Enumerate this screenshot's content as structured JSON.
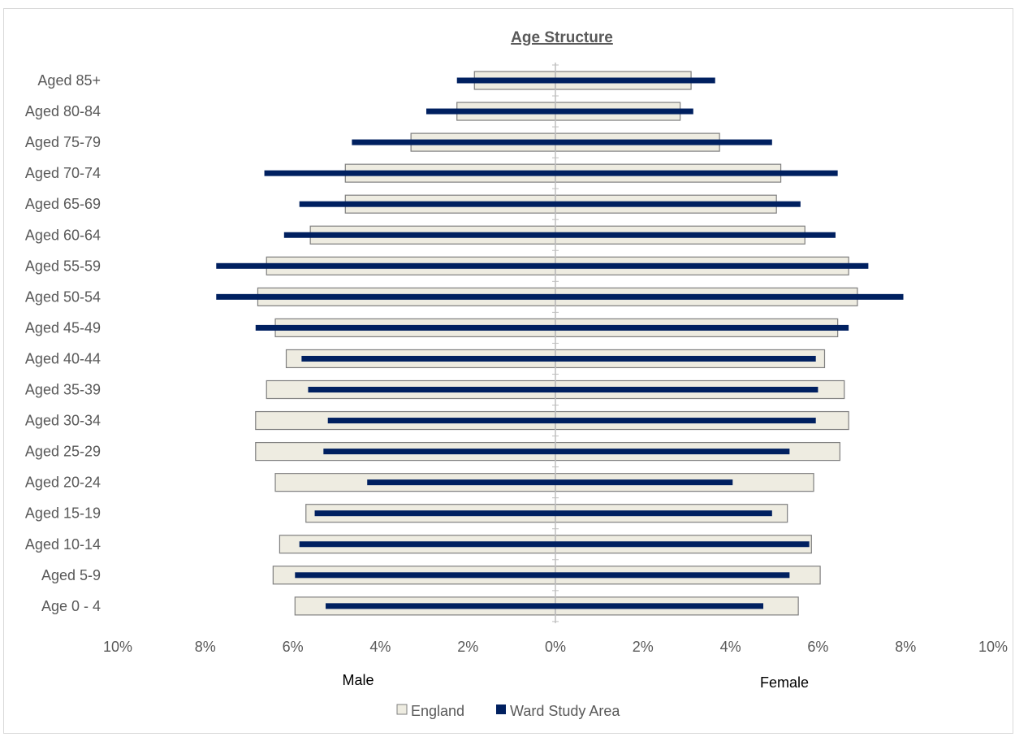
{
  "chart_data": {
    "type": "bar",
    "orientation": "horizontal",
    "title": "Age Structure",
    "categories": [
      "Aged 85+",
      "Aged 80-84",
      "Aged 75-79",
      "Aged 70-74",
      "Aged 65-69",
      "Aged 60-64",
      "Aged 55-59",
      "Aged 50-54",
      "Aged 45-49",
      "Aged 40-44",
      "Aged 35-39",
      "Aged 30-34",
      "Aged 25-29",
      "Aged 20-24",
      "Aged 15-19",
      "Aged 10-14",
      "Aged 5-9",
      "Age 0 - 4"
    ],
    "x_ticks": [
      "10%",
      "8%",
      "6%",
      "4%",
      "2%",
      "0%",
      "2%",
      "4%",
      "6%",
      "8%",
      "10%"
    ],
    "xlim": [
      -10,
      10
    ],
    "side_labels": {
      "left": "Male",
      "right": "Female"
    },
    "series": [
      {
        "name": "England",
        "color": "#eeece1",
        "male": [
          1.85,
          2.25,
          3.3,
          4.8,
          4.8,
          5.6,
          6.6,
          6.8,
          6.4,
          6.15,
          6.6,
          6.85,
          6.85,
          6.4,
          5.7,
          6.3,
          6.45,
          5.95
        ],
        "female": [
          3.1,
          2.85,
          3.75,
          5.15,
          5.05,
          5.7,
          6.7,
          6.9,
          6.45,
          6.15,
          6.6,
          6.7,
          6.5,
          5.9,
          5.3,
          5.85,
          6.05,
          5.55
        ]
      },
      {
        "name": "Ward Study Area",
        "color": "#002060",
        "male": [
          2.25,
          2.95,
          4.65,
          6.65,
          5.85,
          6.2,
          7.75,
          7.75,
          6.85,
          5.8,
          5.65,
          5.2,
          5.3,
          4.3,
          5.5,
          5.85,
          5.95,
          5.25
        ],
        "female": [
          3.65,
          3.15,
          4.95,
          6.45,
          5.6,
          6.4,
          7.15,
          7.95,
          6.7,
          5.95,
          6.0,
          5.95,
          5.35,
          4.05,
          4.95,
          5.8,
          5.35,
          4.75
        ]
      }
    ],
    "legend_position": "bottom"
  }
}
